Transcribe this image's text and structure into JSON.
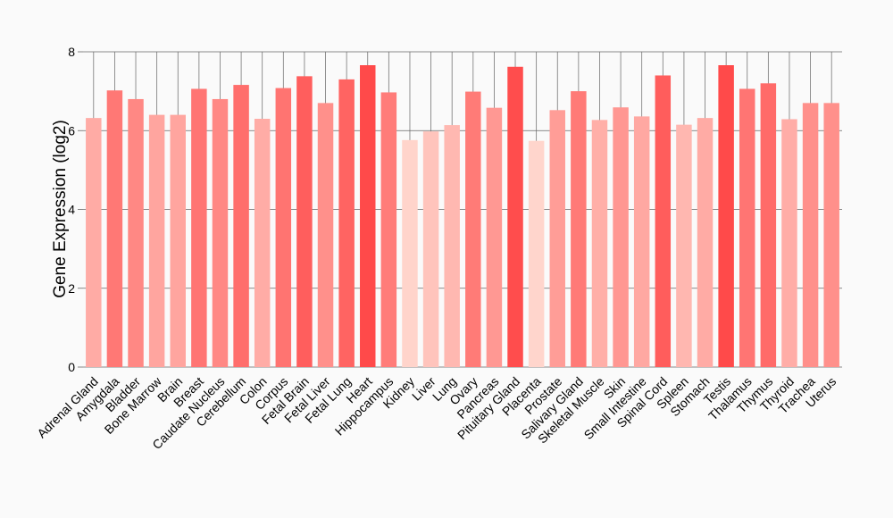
{
  "chart_data": {
    "type": "bar",
    "ylabel": "Gene Expression (log2)",
    "xlabel": "",
    "ylim": [
      0,
      8
    ],
    "yticks": [
      0,
      2,
      4,
      6,
      8
    ],
    "grid": "horizontal and vertical",
    "categories": [
      "Adrenal Gland",
      "Amygdala",
      "Bladder",
      "Bone Marrow",
      "Brain",
      "Breast",
      "Caudate Nucleus",
      "Cerebellum",
      "Colon",
      "Corpus",
      "Fetal Brain",
      "Fetal Liver",
      "Fetal Lung",
      "Heart",
      "Hippocampus",
      "Kidney",
      "Liver",
      "Lung",
      "Ovary",
      "Pancreas",
      "Pituitary Gland",
      "Placenta",
      "Prostate",
      "Salivary Gland",
      "Skeletal Muscle",
      "Skin",
      "Small Intestine",
      "Spinal Cord",
      "Spleen",
      "Stomach",
      "Testis",
      "Thalamus",
      "Thymus",
      "Thyroid",
      "Trachea",
      "Uterus"
    ],
    "values": [
      6.32,
      7.02,
      6.8,
      6.4,
      6.4,
      7.06,
      6.8,
      7.16,
      6.3,
      7.08,
      7.38,
      6.7,
      7.3,
      7.66,
      6.97,
      5.76,
      5.98,
      6.14,
      6.99,
      6.58,
      7.62,
      5.74,
      6.52,
      7.0,
      6.27,
      6.59,
      6.36,
      7.4,
      6.15,
      6.32,
      7.66,
      7.06,
      7.2,
      6.29,
      6.7,
      6.7
    ],
    "colors": {
      "low": "#ffd5cc",
      "high": "#ff4a4a",
      "gridline": "#888888"
    }
  }
}
